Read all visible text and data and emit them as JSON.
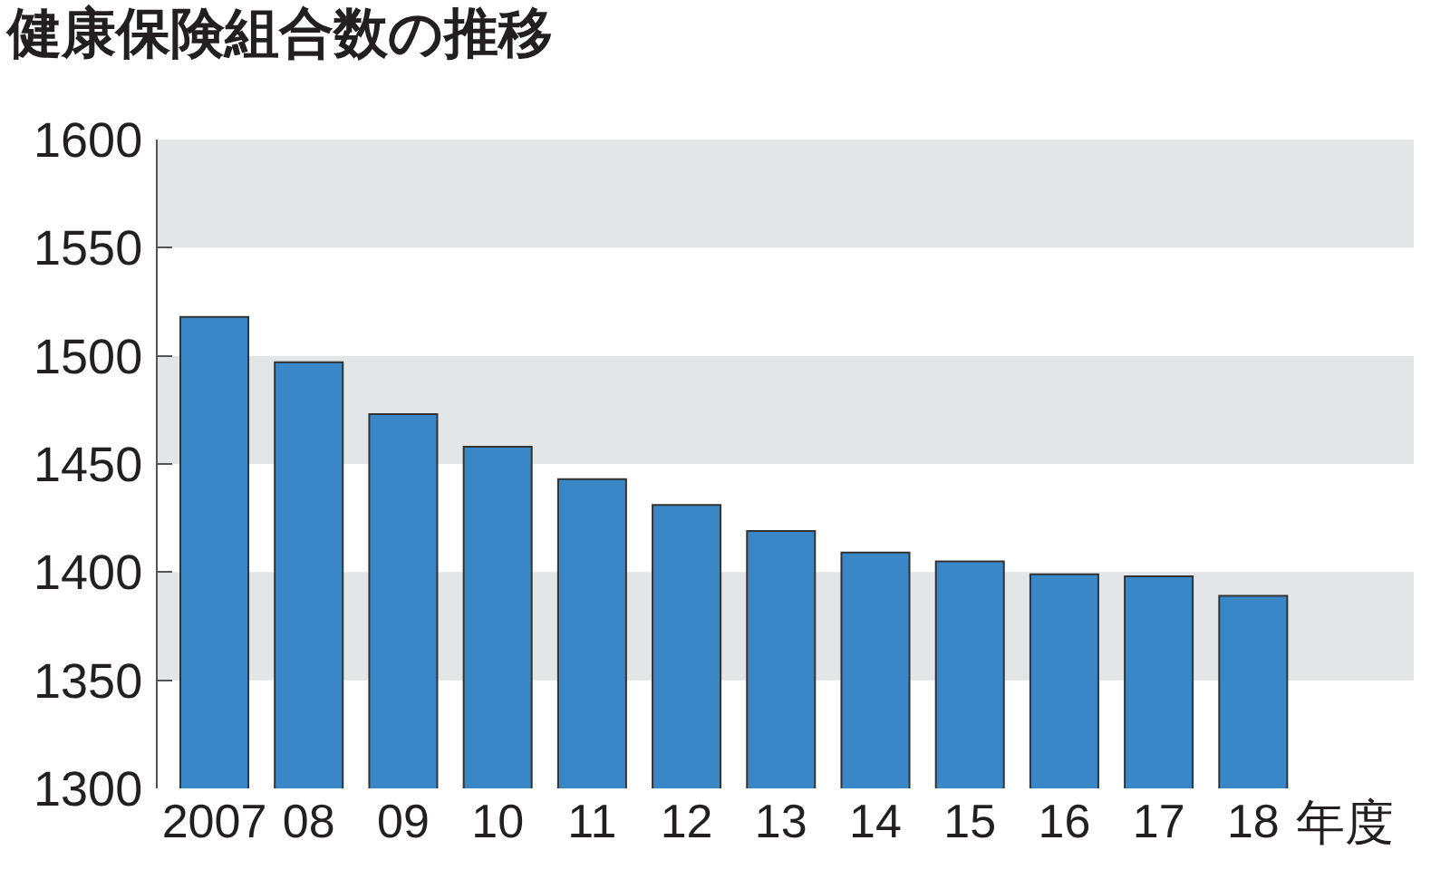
{
  "chart_data": {
    "type": "bar",
    "title": "健康保険組合数の推移",
    "xlabel": "年度",
    "categories": [
      "2007",
      "08",
      "09",
      "10",
      "11",
      "12",
      "13",
      "14",
      "15",
      "16",
      "17",
      "18"
    ],
    "values": [
      1518,
      1497,
      1473,
      1458,
      1443,
      1431,
      1419,
      1409,
      1405,
      1399,
      1398,
      1389
    ],
    "color": "#3a87c8",
    "ylim": [
      1300,
      1600
    ],
    "yticks": [
      1300,
      1350,
      1400,
      1450,
      1500,
      1550,
      1600
    ],
    "bands": [
      {
        "axis": "y",
        "from": 1350,
        "to": 1400,
        "color": "#e4e5e7"
      },
      {
        "axis": "y",
        "from": 1450,
        "to": 1500,
        "color": "#e4e5e7"
      },
      {
        "axis": "y",
        "from": 1550,
        "to": 1600,
        "color": "#e4e5e7"
      }
    ]
  }
}
